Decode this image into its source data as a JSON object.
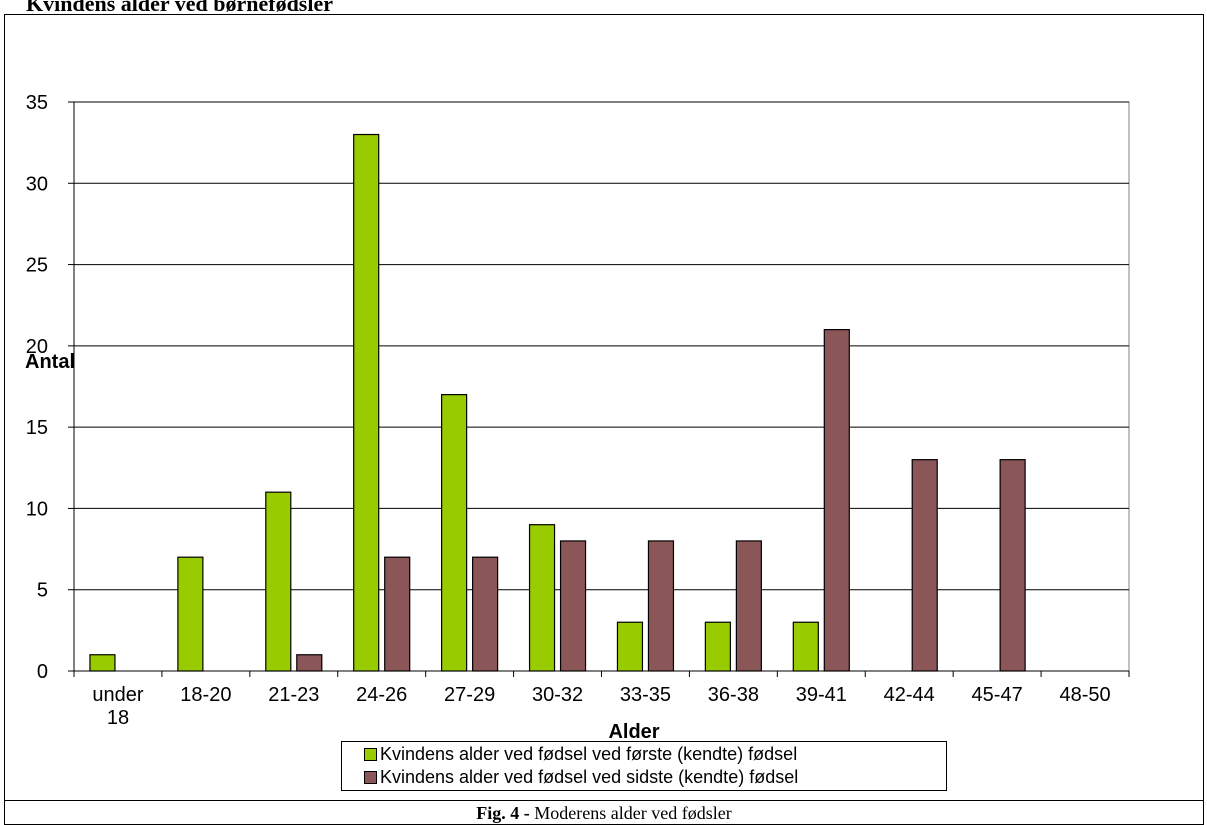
{
  "page": {
    "title": "Kvindens alder ved børnefødsler",
    "caption_fig": "Fig. 4 -",
    "caption_text": " Moderens alder ved fødsler"
  },
  "chart_data": {
    "type": "bar",
    "title": "",
    "xlabel": "Alder",
    "ylabel": "Antal",
    "ylim": [
      0,
      35
    ],
    "yticks": [
      0,
      5,
      10,
      15,
      20,
      25,
      30,
      35
    ],
    "grid": true,
    "legend_position": "bottom",
    "categories": [
      "under 18",
      "18-20",
      "21-23",
      "24-26",
      "27-29",
      "30-32",
      "33-35",
      "36-38",
      "39-41",
      "42-44",
      "45-47",
      "48-50"
    ],
    "series": [
      {
        "name": "Kvindens alder ved fødsel ved første (kendte) fødsel",
        "color": "#99cc00",
        "values": [
          1,
          7,
          11,
          33,
          17,
          9,
          3,
          3,
          3,
          0,
          0,
          0
        ]
      },
      {
        "name": "Kvindens alder ved fødsel ved sidste (kendte) fødsel",
        "color": "#8b5658",
        "values": [
          0,
          0,
          1,
          7,
          7,
          8,
          8,
          8,
          21,
          13,
          13,
          0
        ]
      }
    ]
  }
}
